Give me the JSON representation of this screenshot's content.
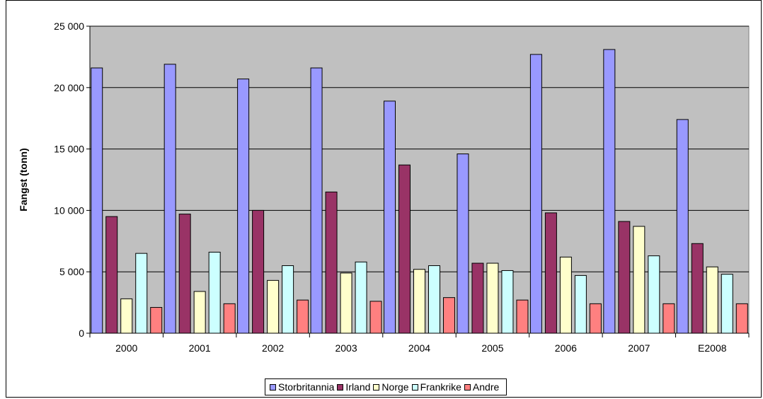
{
  "chart_data": {
    "type": "bar",
    "title": "",
    "xlabel": "",
    "ylabel": "Fangst (tonn)",
    "ylim": [
      0,
      25000
    ],
    "yticks": [
      "0",
      "5 000",
      "10 000",
      "15 000",
      "20 000",
      "25 000"
    ],
    "ytick_values": [
      0,
      5000,
      10000,
      15000,
      20000,
      25000
    ],
    "grid": true,
    "legend_position": "bottom",
    "categories": [
      "2000",
      "2001",
      "2002",
      "2003",
      "2004",
      "2005",
      "2006",
      "2007",
      "E2008"
    ],
    "series": [
      {
        "name": "Storbritannia",
        "color": "#9999FF",
        "values": [
          21600,
          21900,
          20700,
          21600,
          18900,
          14600,
          22700,
          23100,
          17400
        ]
      },
      {
        "name": "Irland",
        "color": "#993366",
        "values": [
          9500,
          9700,
          10000,
          11500,
          13700,
          5700,
          9800,
          9100,
          7300
        ]
      },
      {
        "name": "Norge",
        "color": "#FFFFCC",
        "values": [
          2800,
          3400,
          4300,
          4900,
          5200,
          5700,
          6200,
          8700,
          5400
        ]
      },
      {
        "name": "Frankrike",
        "color": "#CCFFFF",
        "values": [
          6500,
          6600,
          5500,
          5800,
          5500,
          5100,
          4700,
          6300,
          4800
        ]
      },
      {
        "name": "Andre",
        "color": "#FF8080",
        "values": [
          2100,
          2400,
          2700,
          2600,
          2900,
          2700,
          2400,
          2400,
          2400
        ]
      }
    ],
    "plot_background": "#C0C0C0"
  }
}
